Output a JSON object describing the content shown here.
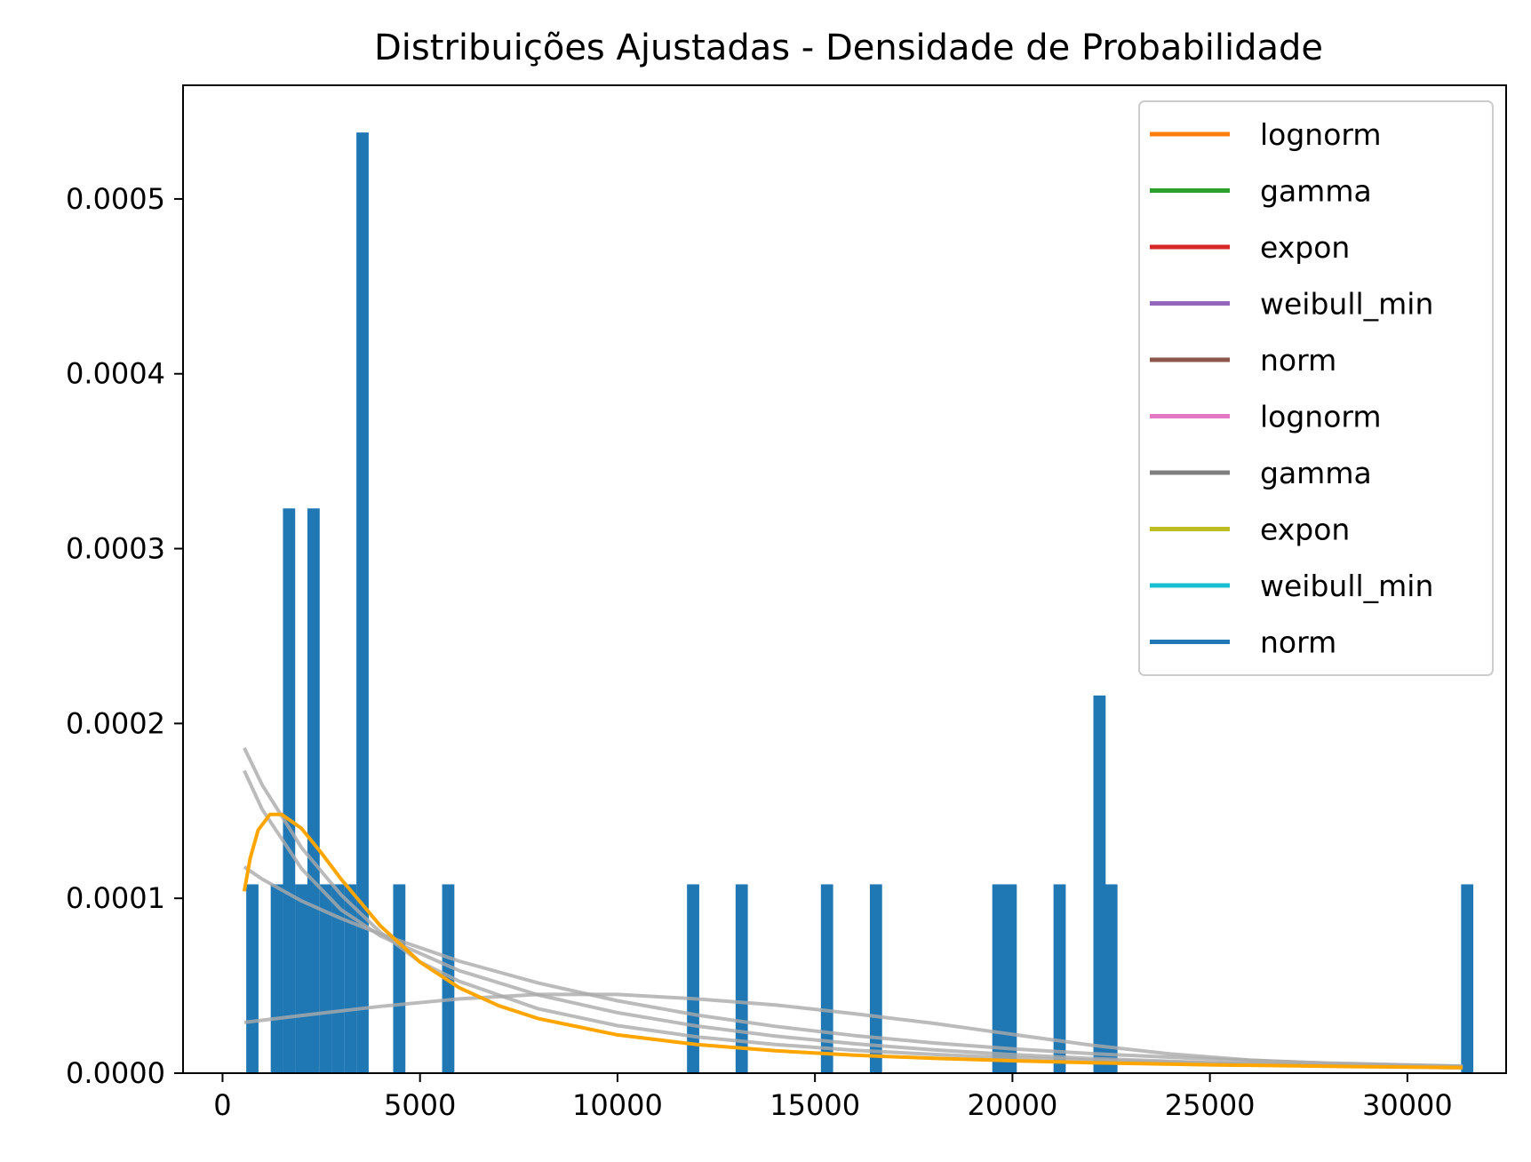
{
  "chart_data": {
    "type": "bar",
    "title": "Distribuições Ajustadas - Densidade de Probabilidade",
    "xlabel": "",
    "ylabel": "",
    "xlim": [
      -1000,
      32500
    ],
    "ylim": [
      0,
      0.000565
    ],
    "xticks": [
      0,
      5000,
      10000,
      15000,
      20000,
      25000,
      30000
    ],
    "xtick_labels": [
      "0",
      "5000",
      "10000",
      "15000",
      "20000",
      "25000",
      "30000"
    ],
    "yticks": [
      0,
      0.0001,
      0.0002,
      0.0003,
      0.0004,
      0.0005
    ],
    "ytick_labels": [
      "0.0000",
      "0.0001",
      "0.0002",
      "0.0003",
      "0.0004",
      "0.0005"
    ],
    "grid": false,
    "legend_position": "top-right",
    "histogram": {
      "color": "#1f77b4",
      "bin_width": 310,
      "bins": [
        {
          "x": 600,
          "density": 0.000108
        },
        {
          "x": 1220,
          "density": 0.000108
        },
        {
          "x": 1530,
          "density": 0.000108
        },
        {
          "x": 1530,
          "density": 0.000323
        },
        {
          "x": 1840,
          "density": 0.000108
        },
        {
          "x": 2150,
          "density": 0.000323
        },
        {
          "x": 2460,
          "density": 0.000108
        },
        {
          "x": 2770,
          "density": 0.000108
        },
        {
          "x": 3080,
          "density": 0.000108
        },
        {
          "x": 3390,
          "density": 0.000538
        },
        {
          "x": 4320,
          "density": 0.000108
        },
        {
          "x": 5560,
          "density": 0.000108
        },
        {
          "x": 11760,
          "density": 0.000108
        },
        {
          "x": 12990,
          "density": 0.000108
        },
        {
          "x": 15150,
          "density": 0.000108
        },
        {
          "x": 16390,
          "density": 0.000108
        },
        {
          "x": 19490,
          "density": 0.000108
        },
        {
          "x": 19800,
          "density": 0.000108
        },
        {
          "x": 21040,
          "density": 0.000108
        },
        {
          "x": 22050,
          "density": 0.000216
        },
        {
          "x": 22350,
          "density": 0.000108
        },
        {
          "x": 31360,
          "density": 0.000108
        }
      ]
    },
    "legend": [
      {
        "name": "lognorm",
        "color": "#ff7f0e"
      },
      {
        "name": "gamma",
        "color": "#2ca02c"
      },
      {
        "name": "expon",
        "color": "#d62728"
      },
      {
        "name": "weibull_min",
        "color": "#9467bd"
      },
      {
        "name": "norm",
        "color": "#8c564b"
      },
      {
        "name": "lognorm",
        "color": "#e377c2"
      },
      {
        "name": "gamma",
        "color": "#7f7f7f"
      },
      {
        "name": "expon",
        "color": "#bcbd22"
      },
      {
        "name": "weibull_min",
        "color": "#17becf"
      },
      {
        "name": "norm",
        "color": "#1f77b4"
      }
    ],
    "fitted_curves": [
      {
        "color": "#aaaaaa",
        "x": [
          550,
          1000,
          2000,
          3000,
          4000,
          5000,
          6000,
          8000,
          10000,
          12000,
          14000,
          16000,
          18000,
          20000,
          22000,
          25000,
          28000,
          31400
        ],
        "y": [
          0.000186,
          0.000165,
          0.000129,
          0.000102,
          8.05e-05,
          6.36e-05,
          5.25e-05,
          3.68e-05,
          2.72e-05,
          2.08e-05,
          1.64e-05,
          1.31e-05,
          1.07e-05,
          8.8e-06,
          7.4e-06,
          5.8e-06,
          4.6e-06,
          3.6e-06
        ]
      },
      {
        "color": "#aaaaaa",
        "x": [
          550,
          1000,
          2000,
          3000,
          4000,
          6000,
          8000,
          10000,
          12000,
          14000,
          16000,
          18000,
          20000,
          22000,
          25000,
          28000,
          31400
        ],
        "y": [
          0.000173,
          0.000151,
          0.000117,
          9.35e-05,
          7.85e-05,
          5.86e-05,
          4.47e-05,
          3.46e-05,
          2.7e-05,
          2.12e-05,
          1.68e-05,
          1.33e-05,
          1.06e-05,
          8.4e-06,
          6e-06,
          4.3e-06,
          3e-06
        ]
      },
      {
        "color": "#aaaaaa",
        "x": [
          550,
          1000,
          2000,
          3000,
          4000,
          6000,
          8000,
          10000,
          12000,
          14000,
          16000,
          18000,
          20000,
          22000,
          25000,
          28000,
          31400
        ],
        "y": [
          0.000118,
          0.000111,
          9.85e-05,
          8.85e-05,
          7.95e-05,
          6.4e-05,
          5.15e-05,
          4.14e-05,
          3.33e-05,
          2.68e-05,
          2.15e-05,
          1.73e-05,
          1.39e-05,
          1.12e-05,
          8.1e-06,
          5.8e-06,
          4e-06
        ]
      },
      {
        "color": "#aaaaaa",
        "x": [
          550,
          2000,
          4000,
          6000,
          8000,
          10000,
          12000,
          14000,
          16000,
          18000,
          20000,
          22000,
          24000,
          26000,
          28000,
          30000,
          31400
        ],
        "y": [
          2.9e-05,
          3.3e-05,
          3.82e-05,
          4.25e-05,
          4.5e-05,
          4.5e-05,
          4.25e-05,
          3.9e-05,
          3.4e-05,
          2.85e-05,
          2.22e-05,
          1.6e-05,
          1.1e-05,
          7.5e-06,
          5.5e-06,
          4.5e-06,
          4e-06
        ]
      },
      {
        "color": "#ffa500",
        "x": [
          550,
          700,
          900,
          1200,
          1500,
          2000,
          2500,
          3000,
          4000,
          5000,
          6000,
          7000,
          8000,
          10000,
          12000,
          14000,
          16000,
          18000,
          20000,
          22000,
          25000,
          28000,
          31400
        ],
        "y": [
          0.000104,
          0.000123,
          0.000139,
          0.000148,
          0.000148,
          0.00014,
          0.000126,
          0.000111,
          8.42e-05,
          6.35e-05,
          4.88e-05,
          3.85e-05,
          3.12e-05,
          2.19e-05,
          1.64e-05,
          1.28e-05,
          1.03e-05,
          8.5e-06,
          7.1e-06,
          6e-06,
          4.8e-06,
          3.9e-06,
          3.2e-06
        ]
      }
    ]
  }
}
